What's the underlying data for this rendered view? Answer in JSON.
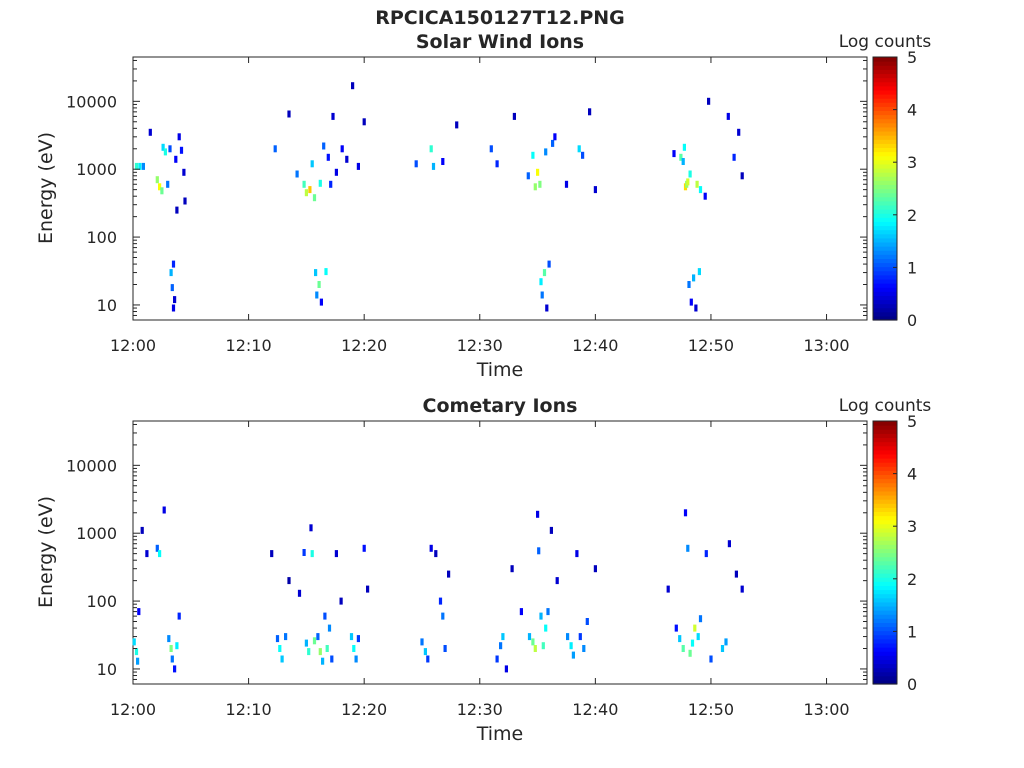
{
  "figure_title": "RPCICA150127T12.PNG",
  "chart_data": [
    {
      "type": "heatmap",
      "title": "Solar Wind Ions",
      "xlabel": "Time",
      "ylabel": "Energy (eV)",
      "x_ticks": [
        "12:00",
        "12:10",
        "12:20",
        "12:30",
        "12:40",
        "12:50",
        "13:00"
      ],
      "xlim_minutes": [
        0,
        63.5
      ],
      "y_scale": "log",
      "y_ticks": [
        "10",
        "100",
        "1000",
        "10000"
      ],
      "ylim": [
        6,
        45000
      ],
      "colorbar": {
        "label": "Log counts",
        "ticks": [
          "0",
          "1",
          "2",
          "3",
          "4",
          "5"
        ],
        "range": [
          0,
          5
        ],
        "colormap": "jet"
      },
      "cells": [
        [
          0.3,
          1100,
          2.1
        ],
        [
          0.6,
          1100,
          1.8
        ],
        [
          0.9,
          1100,
          1.3
        ],
        [
          1.5,
          3500,
          0.4
        ],
        [
          2.1,
          700,
          2.6
        ],
        [
          2.3,
          550,
          3.1
        ],
        [
          2.5,
          480,
          2.4
        ],
        [
          2.6,
          2100,
          1.7
        ],
        [
          2.8,
          1800,
          2.0
        ],
        [
          3.0,
          600,
          1.2
        ],
        [
          3.2,
          2000,
          1.0
        ],
        [
          3.3,
          30,
          1.5
        ],
        [
          3.4,
          18,
          1.1
        ],
        [
          3.5,
          9,
          0.5
        ],
        [
          3.5,
          40,
          0.8
        ],
        [
          3.6,
          12,
          0.4
        ],
        [
          3.7,
          1400,
          0.6
        ],
        [
          3.8,
          250,
          0.3
        ],
        [
          4.0,
          3000,
          0.5
        ],
        [
          4.2,
          1900,
          0.7
        ],
        [
          4.4,
          900,
          0.4
        ],
        [
          4.5,
          340,
          0.3
        ],
        [
          12.3,
          2000,
          1.1
        ],
        [
          13.5,
          6500,
          0.3
        ],
        [
          14.2,
          850,
          1.2
        ],
        [
          14.8,
          600,
          2.2
        ],
        [
          15.0,
          450,
          2.8
        ],
        [
          15.3,
          500,
          3.4
        ],
        [
          15.5,
          1200,
          1.6
        ],
        [
          15.7,
          380,
          2.4
        ],
        [
          15.8,
          30,
          1.6
        ],
        [
          15.9,
          14,
          1.3
        ],
        [
          16.1,
          20,
          2.4
        ],
        [
          16.2,
          620,
          2.0
        ],
        [
          16.3,
          11,
          0.6
        ],
        [
          16.5,
          2200,
          1.1
        ],
        [
          16.7,
          31,
          1.9
        ],
        [
          16.9,
          1500,
          0.7
        ],
        [
          17.1,
          600,
          0.8
        ],
        [
          17.3,
          6000,
          0.4
        ],
        [
          17.6,
          900,
          0.5
        ],
        [
          18.1,
          2000,
          0.6
        ],
        [
          18.5,
          1400,
          0.4
        ],
        [
          19.0,
          17000,
          0.3
        ],
        [
          19.5,
          1100,
          0.5
        ],
        [
          20.0,
          5000,
          0.3
        ],
        [
          24.5,
          1200,
          1.0
        ],
        [
          25.8,
          2000,
          2.1
        ],
        [
          26.0,
          1100,
          1.5
        ],
        [
          26.8,
          1300,
          0.6
        ],
        [
          28.0,
          4500,
          0.3
        ],
        [
          31.0,
          2000,
          1.0
        ],
        [
          31.5,
          1200,
          0.8
        ],
        [
          33.0,
          6000,
          0.3
        ],
        [
          34.2,
          800,
          1.1
        ],
        [
          34.6,
          1600,
          1.9
        ],
        [
          34.8,
          550,
          2.6
        ],
        [
          35.0,
          900,
          3.1
        ],
        [
          35.2,
          600,
          2.5
        ],
        [
          35.3,
          22,
          1.8
        ],
        [
          35.4,
          14,
          1.2
        ],
        [
          35.6,
          30,
          2.3
        ],
        [
          35.7,
          1800,
          1.3
        ],
        [
          35.8,
          9,
          0.4
        ],
        [
          36.0,
          40,
          1.0
        ],
        [
          36.3,
          2400,
          1.1
        ],
        [
          36.5,
          3000,
          0.6
        ],
        [
          37.5,
          600,
          0.5
        ],
        [
          38.6,
          2000,
          1.7
        ],
        [
          38.9,
          1600,
          1.0
        ],
        [
          39.5,
          7000,
          0.3
        ],
        [
          40.0,
          500,
          0.4
        ],
        [
          46.8,
          1700,
          0.6
        ],
        [
          47.4,
          1500,
          2.3
        ],
        [
          47.6,
          1300,
          1.5
        ],
        [
          47.7,
          2100,
          1.9
        ],
        [
          47.8,
          550,
          3.3
        ],
        [
          47.9,
          600,
          2.6
        ],
        [
          48.0,
          650,
          2.9
        ],
        [
          48.1,
          20,
          1.2
        ],
        [
          48.2,
          850,
          2.0
        ],
        [
          48.3,
          11,
          0.6
        ],
        [
          48.5,
          25,
          1.5
        ],
        [
          48.7,
          9,
          0.4
        ],
        [
          48.8,
          600,
          2.8
        ],
        [
          49.0,
          31,
          1.7
        ],
        [
          49.1,
          500,
          1.9
        ],
        [
          49.5,
          400,
          0.6
        ],
        [
          49.8,
          10000,
          0.3
        ],
        [
          51.5,
          6000,
          0.5
        ],
        [
          52.0,
          1500,
          0.8
        ],
        [
          52.4,
          3500,
          0.4
        ],
        [
          52.7,
          800,
          0.3
        ]
      ]
    },
    {
      "type": "heatmap",
      "title": "Cometary Ions",
      "xlabel": "Time",
      "ylabel": "Energy (eV)",
      "x_ticks": [
        "12:00",
        "12:10",
        "12:20",
        "12:30",
        "12:40",
        "12:50",
        "13:00"
      ],
      "xlim_minutes": [
        0,
        63.5
      ],
      "y_scale": "log",
      "y_ticks": [
        "10",
        "100",
        "1000",
        "10000"
      ],
      "ylim": [
        6,
        45000
      ],
      "colorbar": {
        "label": "Log counts",
        "ticks": [
          "0",
          "1",
          "2",
          "3",
          "4",
          "5"
        ],
        "range": [
          0,
          5
        ],
        "colormap": "jet"
      },
      "cells": [
        [
          0.1,
          25,
          1.7
        ],
        [
          0.3,
          18,
          2.0
        ],
        [
          0.4,
          13,
          1.4
        ],
        [
          0.5,
          70,
          0.6
        ],
        [
          0.8,
          1100,
          0.3
        ],
        [
          1.2,
          500,
          0.4
        ],
        [
          2.1,
          600,
          1.1
        ],
        [
          2.3,
          500,
          1.9
        ],
        [
          2.7,
          2200,
          0.5
        ],
        [
          3.1,
          28,
          1.3
        ],
        [
          3.3,
          20,
          2.5
        ],
        [
          3.4,
          14,
          1.2
        ],
        [
          3.6,
          10,
          0.7
        ],
        [
          3.8,
          22,
          1.8
        ],
        [
          4.0,
          60,
          0.8
        ],
        [
          12.0,
          500,
          0.3
        ],
        [
          12.5,
          28,
          1.1
        ],
        [
          12.7,
          20,
          1.9
        ],
        [
          12.9,
          14,
          1.6
        ],
        [
          13.2,
          30,
          1.2
        ],
        [
          13.5,
          200,
          0.2
        ],
        [
          14.4,
          130,
          0.4
        ],
        [
          14.8,
          520,
          0.9
        ],
        [
          15.0,
          24,
          1.5
        ],
        [
          15.2,
          18,
          2.1
        ],
        [
          15.4,
          1200,
          0.4
        ],
        [
          15.5,
          500,
          2.0
        ],
        [
          15.7,
          26,
          2.4
        ],
        [
          16.0,
          30,
          1.1
        ],
        [
          16.2,
          18,
          2.6
        ],
        [
          16.4,
          13,
          1.5
        ],
        [
          16.6,
          60,
          1.0
        ],
        [
          16.8,
          20,
          2.2
        ],
        [
          17.0,
          40,
          1.3
        ],
        [
          17.2,
          14,
          1.0
        ],
        [
          17.6,
          500,
          0.4
        ],
        [
          18.0,
          100,
          0.3
        ],
        [
          18.9,
          30,
          1.6
        ],
        [
          19.1,
          20,
          1.9
        ],
        [
          19.3,
          14,
          1.3
        ],
        [
          19.5,
          28,
          0.9
        ],
        [
          20.0,
          600,
          0.7
        ],
        [
          20.3,
          150,
          0.3
        ],
        [
          25.0,
          25,
          1.2
        ],
        [
          25.3,
          18,
          1.6
        ],
        [
          25.5,
          14,
          0.9
        ],
        [
          25.8,
          600,
          0.5
        ],
        [
          26.2,
          500,
          0.3
        ],
        [
          26.6,
          100,
          0.8
        ],
        [
          26.8,
          60,
          1.2
        ],
        [
          27.0,
          20,
          1.0
        ],
        [
          27.3,
          250,
          0.3
        ],
        [
          31.5,
          14,
          0.9
        ],
        [
          31.8,
          22,
          1.2
        ],
        [
          32.0,
          30,
          1.6
        ],
        [
          32.3,
          10,
          0.5
        ],
        [
          32.8,
          300,
          0.3
        ],
        [
          33.6,
          70,
          0.6
        ],
        [
          34.3,
          30,
          1.5
        ],
        [
          34.6,
          25,
          2.4
        ],
        [
          34.8,
          20,
          2.8
        ],
        [
          35.0,
          1900,
          0.5
        ],
        [
          35.1,
          550,
          1.1
        ],
        [
          35.3,
          60,
          1.5
        ],
        [
          35.5,
          22,
          2.2
        ],
        [
          35.7,
          40,
          1.9
        ],
        [
          35.9,
          70,
          1.2
        ],
        [
          36.2,
          1100,
          0.3
        ],
        [
          36.7,
          200,
          0.4
        ],
        [
          37.6,
          30,
          1.3
        ],
        [
          37.9,
          22,
          1.8
        ],
        [
          38.1,
          16,
          1.4
        ],
        [
          38.4,
          500,
          0.5
        ],
        [
          38.7,
          30,
          0.9
        ],
        [
          39.0,
          20,
          1.3
        ],
        [
          39.3,
          50,
          1.0
        ],
        [
          40.0,
          300,
          0.3
        ],
        [
          46.3,
          150,
          0.4
        ],
        [
          47.0,
          40,
          0.7
        ],
        [
          47.3,
          28,
          1.6
        ],
        [
          47.6,
          20,
          2.3
        ],
        [
          47.8,
          2000,
          0.6
        ],
        [
          48.0,
          600,
          1.3
        ],
        [
          48.2,
          17,
          2.4
        ],
        [
          48.4,
          24,
          1.9
        ],
        [
          48.6,
          40,
          2.9
        ],
        [
          48.9,
          30,
          1.7
        ],
        [
          49.1,
          55,
          1.2
        ],
        [
          49.6,
          500,
          0.8
        ],
        [
          50.0,
          14,
          1.0
        ],
        [
          51.0,
          20,
          1.6
        ],
        [
          51.3,
          25,
          1.4
        ],
        [
          51.6,
          700,
          0.4
        ],
        [
          52.2,
          250,
          0.3
        ],
        [
          52.7,
          150,
          0.4
        ]
      ]
    }
  ]
}
